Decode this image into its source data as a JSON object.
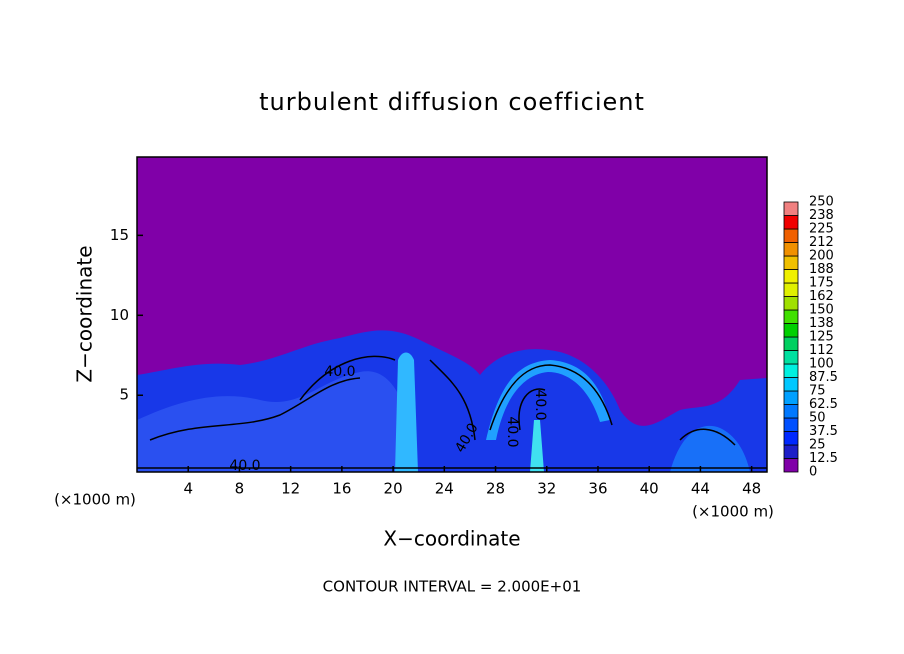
{
  "chart_data": {
    "type": "contour",
    "title": "turbulent diffusion coefficient",
    "xlabel": "X−coordinate",
    "ylabel": "Z−coordinate",
    "x_unit_left": "(×1000 m)",
    "x_unit_right": "(×1000 m)",
    "footnote": "CONTOUR INTERVAL = 2.000E+01",
    "xlim": [
      0,
      49.2
    ],
    "xticks": [
      4,
      8,
      12,
      16,
      20,
      24,
      28,
      32,
      36,
      40,
      44,
      48
    ],
    "ylim": [
      0.2,
      19.9
    ],
    "yticks": [
      5,
      10,
      15
    ],
    "contour_labels": [
      {
        "value": 40,
        "label": "40.0"
      },
      {
        "value": 40,
        "label": "40.0"
      },
      {
        "value": 40,
        "label": "40.0"
      },
      {
        "value": 40,
        "label": "40.0"
      },
      {
        "value": 40,
        "label": "40.0"
      }
    ],
    "colorbar": {
      "levels": [
        0,
        12.5,
        25,
        37.5,
        50,
        62.5,
        75,
        87.5,
        100,
        112,
        125,
        138,
        150,
        162,
        175,
        188,
        200,
        212,
        225,
        238,
        250
      ],
      "colors": [
        "#8000a8",
        "#1e1ec8",
        "#0028ff",
        "#0050ff",
        "#0078ff",
        "#00a0ff",
        "#00c8ff",
        "#00f0e0",
        "#00e0a0",
        "#00d060",
        "#00d000",
        "#40e000",
        "#a0e000",
        "#e0f000",
        "#f0f000",
        "#f0c000",
        "#f09000",
        "#f06000",
        "#f00000",
        "#f08080"
      ]
    }
  }
}
